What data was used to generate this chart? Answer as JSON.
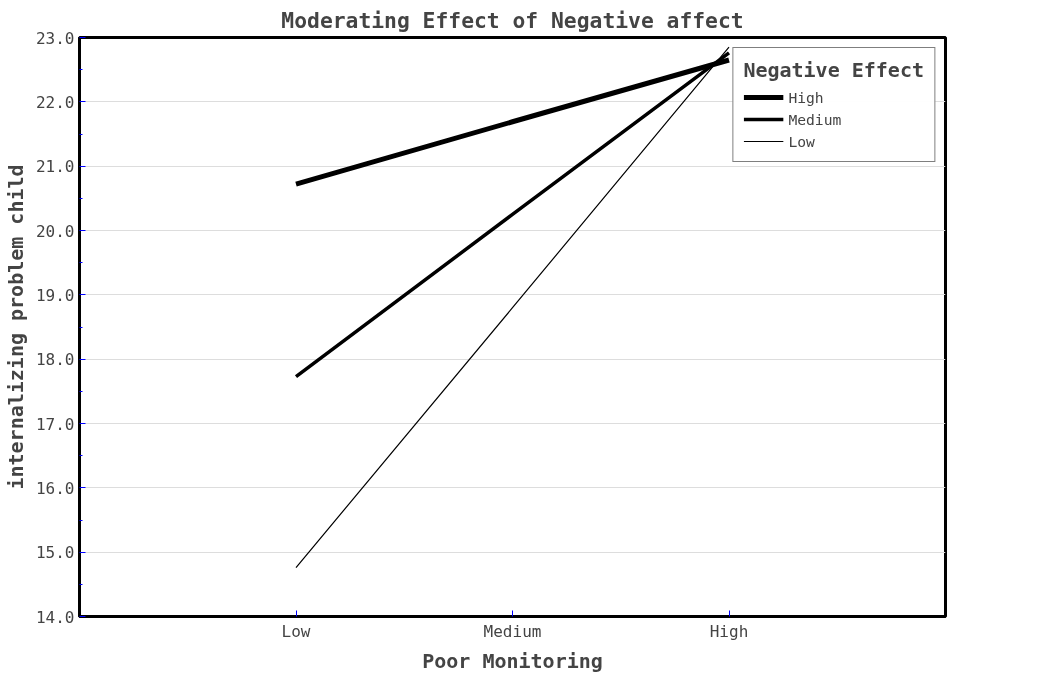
{
  "chart_data": {
    "type": "line",
    "title": "Moderating Effect of Negative affect",
    "xlabel": "Poor Monitoring",
    "ylabel": "internalizing problem child",
    "legend_title": "Negative Effect",
    "categories": [
      "Low",
      "Medium",
      "High"
    ],
    "series": [
      {
        "name": "High",
        "color": "#000000",
        "values": [
          20.72,
          21.69,
          22.65
        ]
      },
      {
        "name": "Medium",
        "color": "#000000",
        "values": [
          17.73,
          20.25,
          22.76
        ]
      },
      {
        "name": "Low",
        "color": "#000000",
        "values": [
          14.76,
          18.8,
          22.85
        ]
      }
    ],
    "ylim": [
      14,
      23
    ],
    "yticks": [
      {
        "value": 14,
        "label": "14.0"
      },
      {
        "value": 15,
        "label": "15.0"
      },
      {
        "value": 16,
        "label": "16.0"
      },
      {
        "value": 17,
        "label": "17.0"
      },
      {
        "value": 18,
        "label": "18.0"
      },
      {
        "value": 19,
        "label": "19.0"
      },
      {
        "value": 20,
        "label": "20.0"
      },
      {
        "value": 21,
        "label": "21.0"
      },
      {
        "value": 22,
        "label": "22.0"
      },
      {
        "value": 23,
        "label": "23.0"
      }
    ],
    "grid": "y",
    "legend": "top right",
    "marker": "none",
    "line_style": "solid"
  }
}
